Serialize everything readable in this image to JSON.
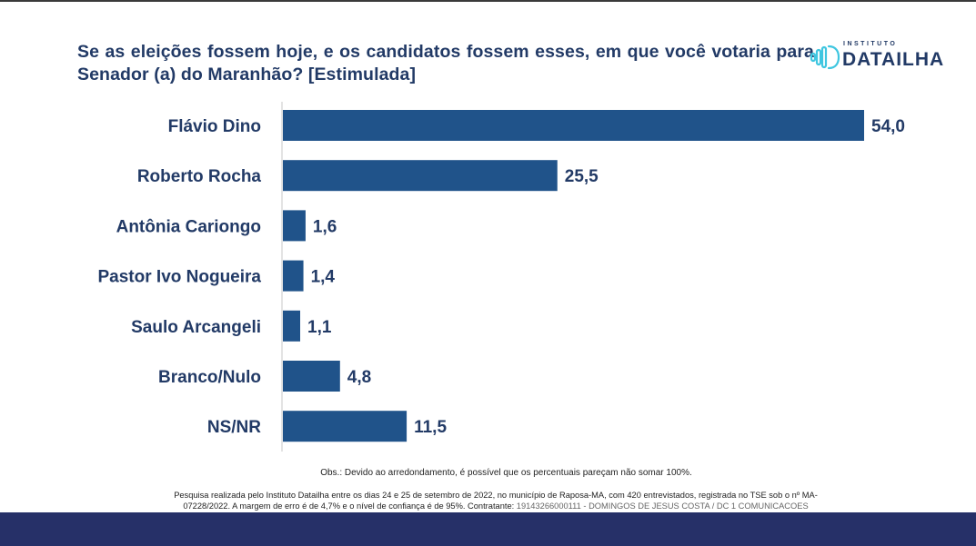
{
  "header": {
    "title": "Se as eleições fossem hoje, e os candidatos fossem esses, em que você votaria para Senador (a) do Maranhão? [Estimulada]"
  },
  "logo": {
    "small_text": "INSTITUTO",
    "big_text": "DATAILHA",
    "icon": "sound-wave-d-icon",
    "icon_color": "#3fc6e0"
  },
  "colors": {
    "bar": "#20538a",
    "text": "#223a66",
    "axis": "#d0d0d0",
    "footer_bar": "#263068"
  },
  "chart_data": {
    "type": "bar",
    "orientation": "horizontal",
    "title": "Se as eleições fossem hoje, e os candidatos fossem esses, em que você votaria para Senador (a) do Maranhão? [Estimulada]",
    "xlabel": "",
    "ylabel": "",
    "unit": "%",
    "categories": [
      "Flávio Dino",
      "Roberto Rocha",
      "Antônia Cariongo",
      "Pastor Ivo Nogueira",
      "Saulo Arcangeli",
      "Branco/Nulo",
      "NS/NR"
    ],
    "values": [
      54.0,
      25.5,
      1.6,
      1.4,
      1.1,
      4.8,
      11.5
    ],
    "labels": [
      "54,0",
      "25,5",
      "1,6",
      "1,4",
      "1,1",
      "4,8",
      "11,5"
    ],
    "xlim": [
      0,
      54.0
    ],
    "grid": false,
    "legend": "none"
  },
  "notes": {
    "obs": "Obs.: Devido ao arredondamento, é possível que os percentuais pareçam não somar 100%.",
    "method_line1": "Pesquisa realizada pelo Instituto Datailha entre os dias 24 e 25 de setembro de 2022, no município de Raposa-MA, com 420 entrevistados, registrada no TSE sob o nº MA-",
    "method_line2": "07228/2022. A margem de erro é de 4,7% e o nível de confiança é de 95%. Contratante: ",
    "contractor": "19143266000111 - DOMINGOS DE JESUS COSTA / DC 1 COMUNICACOES"
  }
}
